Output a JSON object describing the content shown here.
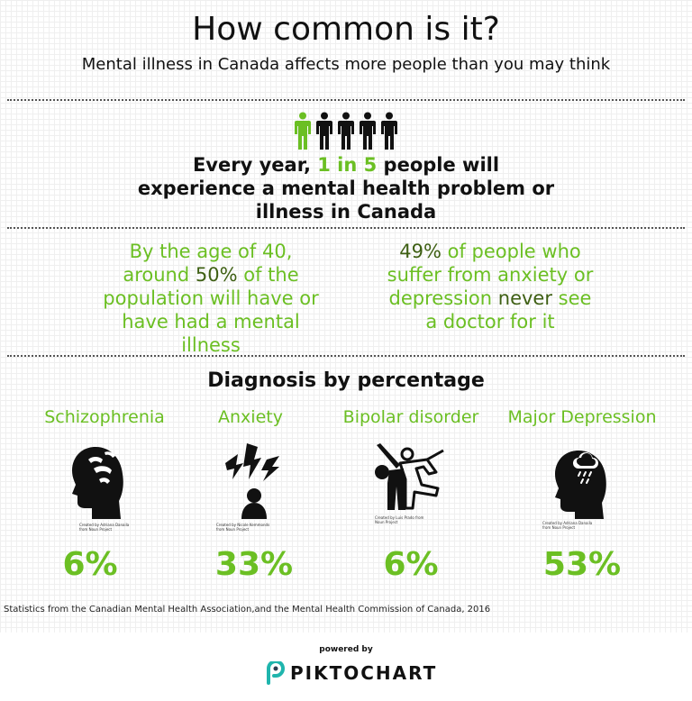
{
  "header": {
    "title": "How common is it?",
    "subtitle": "Mental illness in Canada affects more people than you may think"
  },
  "colors": {
    "accent": "#6bbf23",
    "accent_dark": "#3e5f13",
    "text": "#111111"
  },
  "icons": {
    "people": "person-icons-1-of-5-highlighted",
    "schizophrenia": "head-profile-with-hands-icon",
    "anxiety": "person-with-lightning-bolts-icon",
    "bipolar": "two-figures-jumping-and-slumped-icon",
    "depression": "head-profile-with-rain-cloud-icon",
    "brand": "piktochart-logo-icon"
  },
  "headline_fact": {
    "prefix": "Every year, ",
    "highlight": "1 in 5",
    "suffix": " people will experience a mental health problem or illness in Canada"
  },
  "fact_left": {
    "prefix": "By the age of 40, around ",
    "highlight": "50%",
    "suffix": " of the population will have or have had a mental illness"
  },
  "fact_right": {
    "highlight": "49%",
    "middle": " of people who suffer from anxiety or depression ",
    "emphasis": "never",
    "suffix": " see a doctor for it"
  },
  "diagnosis": {
    "title": "Diagnosis by percentage",
    "items": [
      {
        "name": "Schizophrenia",
        "percent": "6%",
        "credit": "Created by Adriana Danaila from Noun Project"
      },
      {
        "name": "Anxiety",
        "percent": "33%",
        "credit": "Created by Nicole Kemmonds from Noun Project"
      },
      {
        "name": "Bipolar disorder",
        "percent": "6%",
        "credit": "Created by Luis Prado from Noun Project"
      },
      {
        "name": "Major Depression",
        "percent": "53%",
        "credit": "Created by Adriana Danaila from Noun Project"
      }
    ]
  },
  "source": "Statistics  from the Canadian Mental Health Association,and the Mental Health Commission of Canada,  2016",
  "footer": {
    "powered_by": "powered by",
    "brand": "PIKTOCHART"
  }
}
